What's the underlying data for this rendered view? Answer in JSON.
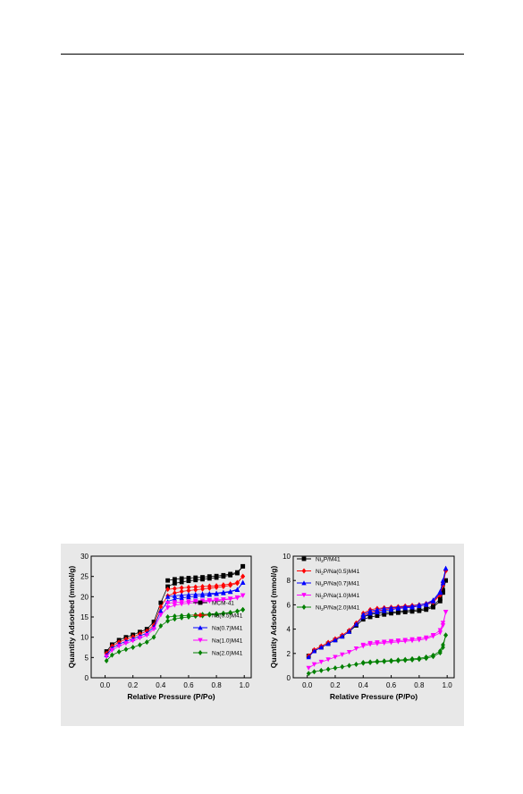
{
  "chart_data": [
    {
      "type": "line",
      "title": "",
      "xlabel": "Relative Pressure (P/Po)",
      "ylabel": "Quantity Adsorbed (mmol/g)",
      "xlim": [
        -0.1,
        1.05
      ],
      "ylim": [
        0,
        30
      ],
      "xticks": [
        "0.0",
        "0.2",
        "0.4",
        "0.6",
        "0.8",
        "1.0"
      ],
      "xtick_values": [
        0.0,
        0.2,
        0.4,
        0.6,
        0.8,
        1.0
      ],
      "yticks": [
        "0",
        "5",
        "10",
        "15",
        "20",
        "25",
        "30"
      ],
      "ytick_values": [
        0,
        5,
        10,
        15,
        20,
        25,
        30
      ],
      "grid": false,
      "legend_position": "bottom-right",
      "x": [
        0.01,
        0.05,
        0.1,
        0.15,
        0.2,
        0.25,
        0.3,
        0.35,
        0.4,
        0.45,
        0.5,
        0.55,
        0.6,
        0.65,
        0.7,
        0.75,
        0.8,
        0.85,
        0.9,
        0.95,
        0.99
      ],
      "series": [
        {
          "name": "MCM-41",
          "color": "#000000",
          "marker": "square",
          "adsorption": [
            6.5,
            8.2,
            9.3,
            10.0,
            10.6,
            11.3,
            12.0,
            13.8,
            18.5,
            22.5,
            23.3,
            23.6,
            23.9,
            24.1,
            24.3,
            24.5,
            24.7,
            25.0,
            25.3,
            25.8,
            27.5
          ],
          "desorption": [
            null,
            null,
            null,
            null,
            null,
            null,
            null,
            null,
            null,
            24.0,
            24.3,
            24.5,
            24.6,
            24.7,
            24.8,
            25.0,
            25.1,
            25.3,
            25.6,
            26.0,
            27.5
          ]
        },
        {
          "name": "Na(0.5)M41",
          "color": "#ff0000",
          "marker": "diamond",
          "adsorption": [
            6.0,
            7.8,
            8.8,
            9.5,
            10.1,
            10.8,
            11.5,
            13.0,
            17.5,
            20.2,
            20.9,
            21.3,
            21.5,
            21.7,
            21.9,
            22.1,
            22.3,
            22.5,
            22.8,
            23.3,
            25.0
          ],
          "desorption": [
            null,
            null,
            null,
            null,
            null,
            null,
            null,
            null,
            null,
            21.8,
            22.0,
            22.2,
            22.3,
            22.4,
            22.5,
            22.6,
            22.7,
            22.9,
            23.1,
            23.5,
            25.0
          ]
        },
        {
          "name": "Na(0.7)M41",
          "color": "#0000ff",
          "marker": "triangle-up",
          "adsorption": [
            5.6,
            7.3,
            8.3,
            9.0,
            9.6,
            10.3,
            11.0,
            12.5,
            16.5,
            18.8,
            19.4,
            19.7,
            19.9,
            20.1,
            20.3,
            20.5,
            20.7,
            20.9,
            21.2,
            21.7,
            23.5
          ],
          "desorption": [
            null,
            null,
            null,
            null,
            null,
            null,
            null,
            null,
            null,
            20.0,
            20.2,
            20.4,
            20.5,
            20.6,
            20.7,
            20.8,
            20.9,
            21.1,
            21.3,
            21.8,
            23.5
          ]
        },
        {
          "name": "Na(1.0)M41",
          "color": "#ff00ff",
          "marker": "triangle-down",
          "adsorption": [
            5.2,
            6.8,
            7.8,
            8.5,
            9.1,
            9.8,
            10.5,
            12.0,
            15.5,
            17.3,
            17.9,
            18.2,
            18.4,
            18.6,
            18.7,
            18.9,
            19.0,
            19.2,
            19.4,
            19.7,
            20.3
          ],
          "desorption": [
            null,
            null,
            null,
            null,
            null,
            null,
            null,
            null,
            null,
            18.4,
            18.6,
            18.7,
            18.8,
            18.9,
            19.0,
            19.1,
            19.2,
            19.3,
            19.5,
            19.8,
            20.3
          ]
        },
        {
          "name": "Na(2.0)M41",
          "color": "#008000",
          "marker": "diamond",
          "adsorption": [
            4.2,
            5.6,
            6.4,
            7.0,
            7.5,
            8.1,
            8.8,
            10.0,
            12.8,
            14.0,
            14.5,
            14.8,
            15.0,
            15.2,
            15.3,
            15.5,
            15.6,
            15.8,
            16.0,
            16.4,
            16.8
          ],
          "desorption": [
            null,
            null,
            null,
            null,
            null,
            null,
            null,
            null,
            null,
            15.0,
            15.2,
            15.3,
            15.4,
            15.5,
            15.6,
            15.7,
            15.8,
            15.9,
            16.1,
            16.4,
            16.8
          ]
        }
      ]
    },
    {
      "type": "line",
      "title": "",
      "xlabel": "Relative Pressure (P/Po)",
      "ylabel": "Quantity Adsorbed (mmol/g)",
      "xlim": [
        -0.1,
        1.05
      ],
      "ylim": [
        0,
        10
      ],
      "xticks": [
        "0.0",
        "0.2",
        "0.4",
        "0.6",
        "0.8",
        "1.0"
      ],
      "xtick_values": [
        0.0,
        0.2,
        0.4,
        0.6,
        0.8,
        1.0
      ],
      "yticks": [
        "0",
        "2",
        "4",
        "6",
        "8",
        "10"
      ],
      "ytick_values": [
        0,
        2,
        4,
        6,
        8,
        10
      ],
      "grid": false,
      "legend_position": "top-left",
      "x": [
        0.01,
        0.05,
        0.1,
        0.15,
        0.2,
        0.25,
        0.3,
        0.35,
        0.4,
        0.45,
        0.5,
        0.55,
        0.6,
        0.65,
        0.7,
        0.75,
        0.8,
        0.85,
        0.9,
        0.95,
        0.97,
        0.99
      ],
      "series": [
        {
          "name_prefix": "Ni",
          "name_sub": "2",
          "name_suffix": "P/M41",
          "color": "#000000",
          "marker": "square",
          "adsorption": [
            1.8,
            2.2,
            2.5,
            2.8,
            3.1,
            3.4,
            3.8,
            4.3,
            4.8,
            5.0,
            5.1,
            5.2,
            5.3,
            5.35,
            5.4,
            5.45,
            5.5,
            5.6,
            5.8,
            6.3,
            7.0,
            8.0
          ],
          "desorption": [
            null,
            null,
            null,
            null,
            null,
            null,
            null,
            null,
            5.0,
            5.2,
            5.3,
            5.35,
            5.4,
            5.45,
            5.5,
            5.55,
            5.6,
            5.7,
            5.9,
            6.5,
            7.2,
            8.0
          ]
        },
        {
          "name_prefix": "Ni",
          "name_sub": "2",
          "name_suffix": "P/Na(0.5)M41",
          "color": "#ff0000",
          "marker": "diamond",
          "adsorption": [
            1.8,
            2.3,
            2.6,
            2.9,
            3.2,
            3.5,
            3.9,
            4.5,
            5.1,
            5.4,
            5.5,
            5.6,
            5.7,
            5.75,
            5.8,
            5.85,
            5.9,
            6.0,
            6.2,
            6.8,
            7.6,
            8.8
          ],
          "desorption": [
            null,
            null,
            null,
            null,
            null,
            null,
            null,
            null,
            5.3,
            5.6,
            5.7,
            5.75,
            5.8,
            5.85,
            5.9,
            5.95,
            6.0,
            6.1,
            6.3,
            6.9,
            7.8,
            8.8
          ]
        },
        {
          "name_prefix": "Ni",
          "name_sub": "2",
          "name_suffix": "P/Na(0.7)M41",
          "color": "#0000ff",
          "marker": "triangle-up",
          "adsorption": [
            1.7,
            2.2,
            2.5,
            2.8,
            3.1,
            3.4,
            3.8,
            4.4,
            5.0,
            5.3,
            5.4,
            5.5,
            5.6,
            5.7,
            5.75,
            5.8,
            5.9,
            6.0,
            6.3,
            7.0,
            7.8,
            9.0
          ],
          "desorption": [
            null,
            null,
            null,
            null,
            null,
            null,
            null,
            null,
            5.2,
            5.5,
            5.6,
            5.7,
            5.75,
            5.8,
            5.85,
            5.9,
            6.0,
            6.1,
            6.4,
            7.1,
            8.0,
            9.0
          ]
        },
        {
          "name_prefix": "Ni",
          "name_sub": "2",
          "name_suffix": "P/Na(1.0)M41",
          "color": "#ff00ff",
          "marker": "triangle-down",
          "adsorption": [
            0.8,
            1.1,
            1.3,
            1.5,
            1.7,
            1.9,
            2.1,
            2.4,
            2.6,
            2.75,
            2.8,
            2.85,
            2.9,
            2.95,
            3.0,
            3.05,
            3.1,
            3.2,
            3.4,
            3.7,
            4.3,
            5.4
          ],
          "desorption": [
            null,
            null,
            null,
            null,
            null,
            null,
            null,
            null,
            2.7,
            2.85,
            2.9,
            2.95,
            3.0,
            3.05,
            3.1,
            3.15,
            3.2,
            3.3,
            3.5,
            3.9,
            4.5,
            5.4
          ]
        },
        {
          "name_prefix": "Ni",
          "name_sub": "2",
          "name_suffix": "P/Na(2.0)M41",
          "color": "#008000",
          "marker": "diamond",
          "adsorption": [
            0.35,
            0.5,
            0.6,
            0.7,
            0.8,
            0.9,
            1.0,
            1.1,
            1.2,
            1.25,
            1.3,
            1.33,
            1.36,
            1.4,
            1.43,
            1.47,
            1.52,
            1.6,
            1.75,
            2.05,
            2.5,
            3.5
          ],
          "desorption": [
            null,
            null,
            null,
            null,
            null,
            null,
            null,
            null,
            1.25,
            1.3,
            1.35,
            1.38,
            1.42,
            1.46,
            1.5,
            1.55,
            1.6,
            1.7,
            1.85,
            2.2,
            2.7,
            3.5
          ]
        }
      ]
    }
  ]
}
